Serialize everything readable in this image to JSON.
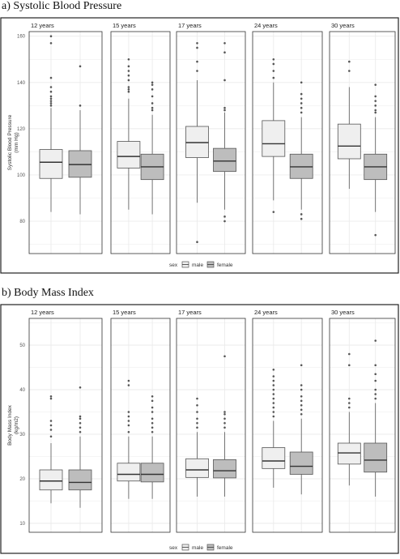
{
  "figures": [
    {
      "title": "a) Systolic Blood Pressure",
      "legend": {
        "title": "sex",
        "labels": [
          "male",
          "female"
        ]
      },
      "ylabel": "Systolic Blood Pressure\n(mm Hg)",
      "ticks": [
        "80",
        "100",
        "120",
        "140",
        "160"
      ]
    },
    {
      "title": "b) Body Mass Index",
      "legend": {
        "title": "sex",
        "labels": [
          "male",
          "female"
        ]
      },
      "ylabel": "Body Mass Index\n(kg/m2)",
      "ticks": [
        "10",
        "20",
        "30",
        "40",
        "50"
      ]
    }
  ],
  "colors": {
    "male_fill": "#efefef",
    "female_fill": "#bdbdbd",
    "outline": "#555555",
    "outlier": "#555555",
    "grid": "#ebebeb",
    "panel_border": "#333333",
    "outer_border": "#222222"
  },
  "chart_data": [
    {
      "type": "box",
      "title": "a) Systolic Blood Pressure",
      "ylabel": "Systolic Blood Pressure (mm Hg)",
      "ylim": [
        66,
        162
      ],
      "yticks": [
        80,
        100,
        120,
        140,
        160
      ],
      "grid": true,
      "legend": {
        "title": "sex",
        "position": "bottom",
        "entries": [
          "male",
          "female"
        ]
      },
      "facets": [
        {
          "label": "12 years",
          "boxes": [
            {
              "group": "male",
              "min": 84,
              "q1": 98.5,
              "median": 105.5,
              "q3": 111,
              "max": 129,
              "outliers": [
                130,
                131,
                132,
                133,
                134,
                136,
                138,
                142,
                157,
                160
              ]
            },
            {
              "group": "female",
              "min": 83,
              "q1": 99,
              "median": 104.5,
              "q3": 110.5,
              "max": 128,
              "outliers": [
                130,
                147
              ]
            }
          ]
        },
        {
          "label": "15 years",
          "boxes": [
            {
              "group": "male",
              "min": 85,
              "q1": 103,
              "median": 108,
              "q3": 114.5,
              "max": 133,
              "outliers": [
                136,
                137,
                138,
                141,
                143,
                145,
                147,
                150
              ]
            },
            {
              "group": "female",
              "min": 83,
              "q1": 98,
              "median": 103.5,
              "q3": 109,
              "max": 126,
              "outliers": [
                128,
                129,
                131,
                134,
                137,
                139,
                140
              ]
            }
          ]
        },
        {
          "label": "17 years",
          "boxes": [
            {
              "group": "male",
              "min": 88,
              "q1": 107.5,
              "median": 114,
              "q3": 121,
              "max": 141,
              "outliers": [
                71,
                145,
                149,
                155,
                157
              ]
            },
            {
              "group": "female",
              "min": 85,
              "q1": 101.5,
              "median": 106,
              "q3": 111.5,
              "max": 127,
              "outliers": [
                80,
                82,
                128,
                129,
                141,
                153,
                157
              ]
            }
          ]
        },
        {
          "label": "24 years",
          "boxes": [
            {
              "group": "male",
              "min": 89,
              "q1": 108,
              "median": 113.5,
              "q3": 123.5,
              "max": 140,
              "outliers": [
                84,
                142,
                145,
                148,
                150
              ]
            },
            {
              "group": "female",
              "min": 85,
              "q1": 98.5,
              "median": 103.5,
              "q3": 109,
              "max": 125,
              "outliers": [
                81,
                83,
                127,
                129,
                131,
                133,
                135,
                140
              ]
            }
          ]
        },
        {
          "label": "30 years",
          "boxes": [
            {
              "group": "male",
              "min": 94,
              "q1": 107,
              "median": 112.5,
              "q3": 122,
              "max": 138,
              "outliers": [
                145,
                149
              ]
            },
            {
              "group": "female",
              "min": 84,
              "q1": 98,
              "median": 103.5,
              "q3": 109,
              "max": 125,
              "outliers": [
                74,
                127,
                128,
                130,
                132,
                134,
                139
              ]
            }
          ]
        }
      ]
    },
    {
      "type": "box",
      "title": "b) Body Mass Index",
      "ylabel": "Body Mass Index (kg/m2)",
      "ylim": [
        8,
        56
      ],
      "yticks": [
        10,
        20,
        30,
        40,
        50
      ],
      "grid": true,
      "legend": {
        "title": "sex",
        "position": "bottom",
        "entries": [
          "male",
          "female"
        ]
      },
      "facets": [
        {
          "label": "12 years",
          "boxes": [
            {
              "group": "male",
              "min": 14.5,
              "q1": 17.5,
              "median": 19.5,
              "q3": 22,
              "max": 28,
              "outliers": [
                29.5,
                31,
                32,
                33,
                38,
                38.5
              ]
            },
            {
              "group": "female",
              "min": 13.5,
              "q1": 17.5,
              "median": 19.2,
              "q3": 22,
              "max": 29.5,
              "outliers": [
                30.5,
                31.5,
                32.5,
                33.5,
                34,
                40.5
              ]
            }
          ]
        },
        {
          "label": "15 years",
          "boxes": [
            {
              "group": "male",
              "min": 15.5,
              "q1": 19.5,
              "median": 21,
              "q3": 23.5,
              "max": 29.5,
              "outliers": [
                30.5,
                32,
                33,
                34,
                35,
                41,
                42
              ]
            },
            {
              "group": "female",
              "min": 15.5,
              "q1": 19.3,
              "median": 21,
              "q3": 23.5,
              "max": 29.5,
              "outliers": [
                30.5,
                31.5,
                32.5,
                33.5,
                35,
                36,
                37.5,
                38.5
              ]
            }
          ]
        },
        {
          "label": "17 years",
          "boxes": [
            {
              "group": "male",
              "min": 16,
              "q1": 20.3,
              "median": 22,
              "q3": 24.5,
              "max": 30.5,
              "outliers": [
                31.5,
                32.5,
                33.5,
                35,
                36.5,
                38
              ]
            },
            {
              "group": "female",
              "min": 16,
              "q1": 20.2,
              "median": 21.8,
              "q3": 24.3,
              "max": 30.5,
              "outliers": [
                31.5,
                32.5,
                33.5,
                34.5,
                35,
                47.5
              ]
            }
          ]
        },
        {
          "label": "24 years",
          "boxes": [
            {
              "group": "male",
              "min": 18,
              "q1": 22.3,
              "median": 24,
              "q3": 27,
              "max": 33,
              "outliers": [
                34,
                35,
                36,
                37,
                38,
                39,
                40,
                41,
                42,
                43,
                44.5
              ]
            },
            {
              "group": "female",
              "min": 16.5,
              "q1": 21,
              "median": 22.8,
              "q3": 26,
              "max": 33.5,
              "outliers": [
                34.5,
                35.5,
                36.5,
                37.5,
                38.5,
                40,
                41,
                45.5
              ]
            }
          ]
        },
        {
          "label": "30 years",
          "boxes": [
            {
              "group": "male",
              "min": 18.5,
              "q1": 23.3,
              "median": 25.8,
              "q3": 28,
              "max": 35,
              "outliers": [
                36,
                37,
                38,
                45.5,
                48
              ]
            },
            {
              "group": "female",
              "min": 16,
              "q1": 21.5,
              "median": 24.2,
              "q3": 28,
              "max": 37,
              "outliers": [
                38,
                39,
                40,
                42,
                43.5,
                45.5,
                51
              ]
            }
          ]
        }
      ]
    }
  ]
}
